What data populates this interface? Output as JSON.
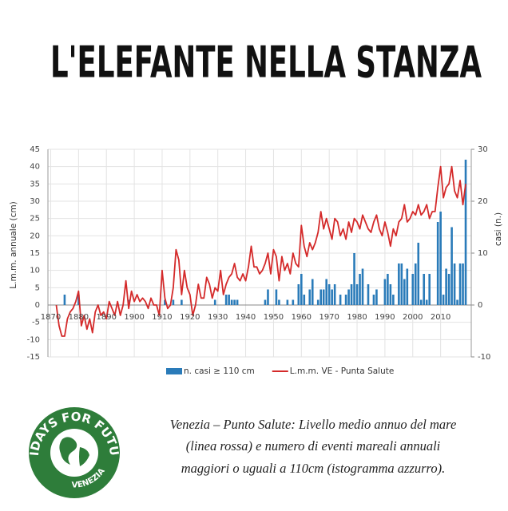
{
  "title": "L'ELEFANTE NELLA STANZA",
  "chart_data": {
    "type": "combo",
    "ylabel": "L.m.m. annuale (cm)",
    "y2label": "casi (n.)",
    "xlim": [
      1869,
      2021
    ],
    "xticks": [
      1870,
      1880,
      1890,
      1900,
      1910,
      1920,
      1930,
      1940,
      1950,
      1960,
      1970,
      1980,
      1990,
      2000,
      2010
    ],
    "ylim": [
      -15,
      45
    ],
    "yticks": [
      -15,
      -10,
      -5,
      0,
      5,
      10,
      15,
      20,
      25,
      30,
      35,
      40,
      45
    ],
    "y2lim": [
      -10,
      30
    ],
    "y2ticks": [
      -10,
      0,
      10,
      20,
      30
    ],
    "grid": true,
    "legend": "bottom",
    "series": [
      {
        "name": "n. casi ≥ 110 cm",
        "type": "bar",
        "axis": "y2",
        "color": "#2a7bb9",
        "x": [
          1875,
          1880,
          1898,
          1911,
          1914,
          1917,
          1929,
          1933,
          1934,
          1935,
          1936,
          1937,
          1947,
          1948,
          1951,
          1952,
          1955,
          1957,
          1959,
          1960,
          1961,
          1963,
          1964,
          1966,
          1967,
          1968,
          1969,
          1970,
          1971,
          1972,
          1974,
          1976,
          1977,
          1978,
          1979,
          1980,
          1981,
          1982,
          1984,
          1986,
          1987,
          1990,
          1991,
          1992,
          1993,
          1995,
          1996,
          1997,
          1998,
          2000,
          2001,
          2002,
          2003,
          2004,
          2005,
          2006,
          2009,
          2010,
          2011,
          2012,
          2013,
          2014,
          2015,
          2016,
          2017,
          2018,
          2019
        ],
        "values": [
          2,
          2,
          1,
          1,
          1,
          1,
          1,
          2,
          2,
          1,
          1,
          1,
          1,
          3,
          3,
          1,
          1,
          1,
          4,
          6,
          2,
          3,
          5,
          1,
          3,
          3,
          5,
          4,
          3,
          4,
          2,
          2,
          3,
          4,
          10,
          4,
          6,
          7,
          4,
          2,
          3,
          5,
          6,
          4,
          2,
          8,
          8,
          5,
          7,
          6,
          8,
          12,
          1,
          6,
          1,
          6,
          16,
          18,
          2,
          7,
          6,
          15,
          8,
          1,
          8,
          8,
          28
        ]
      },
      {
        "name": "L.m.m. VE - Punta Salute",
        "type": "line",
        "color": "#d42a2a",
        "x": [
          1872,
          1873,
          1874,
          1875,
          1876,
          1877,
          1878,
          1879,
          1880,
          1881,
          1882,
          1883,
          1884,
          1885,
          1886,
          1887,
          1888,
          1889,
          1890,
          1891,
          1892,
          1893,
          1894,
          1895,
          1896,
          1897,
          1898,
          1899,
          1900,
          1901,
          1902,
          1903,
          1904,
          1905,
          1906,
          1907,
          1908,
          1909,
          1910,
          1911,
          1912,
          1913,
          1914,
          1915,
          1916,
          1917,
          1918,
          1919,
          1920,
          1921,
          1922,
          1923,
          1924,
          1925,
          1926,
          1927,
          1928,
          1929,
          1930,
          1931,
          1932,
          1933,
          1934,
          1935,
          1936,
          1937,
          1938,
          1939,
          1940,
          1941,
          1942,
          1943,
          1944,
          1945,
          1946,
          1947,
          1948,
          1949,
          1950,
          1951,
          1952,
          1953,
          1954,
          1955,
          1956,
          1957,
          1958,
          1959,
          1960,
          1961,
          1962,
          1963,
          1964,
          1965,
          1966,
          1967,
          1968,
          1969,
          1970,
          1971,
          1972,
          1973,
          1974,
          1975,
          1976,
          1977,
          1978,
          1979,
          1980,
          1981,
          1982,
          1983,
          1984,
          1985,
          1986,
          1987,
          1988,
          1989,
          1990,
          1991,
          1992,
          1993,
          1994,
          1995,
          1996,
          1997,
          1998,
          1999,
          2000,
          2001,
          2002,
          2003,
          2004,
          2005,
          2006,
          2007,
          2008,
          2009,
          2010,
          2011,
          2012,
          2013,
          2014,
          2015,
          2016,
          2017,
          2018,
          2019
        ],
        "values": [
          0,
          -6,
          -9,
          -9,
          -4,
          -2,
          -1,
          1,
          4,
          -6,
          -3,
          -7,
          -4,
          -8,
          -2,
          0,
          -3,
          -2,
          -4,
          1,
          -1,
          -3,
          1,
          -3,
          0,
          7,
          -1,
          4,
          1,
          3,
          1,
          2,
          1,
          -1,
          2,
          0,
          0,
          -3,
          10,
          2,
          -1,
          0,
          5,
          16,
          13,
          3,
          10,
          5,
          3,
          -3,
          0,
          6,
          2,
          2,
          8,
          6,
          2,
          5,
          4,
          10,
          3,
          6,
          8,
          9,
          12,
          8,
          7,
          9,
          7,
          11,
          17,
          11,
          11,
          9,
          10,
          12,
          15,
          9,
          16,
          14,
          7,
          14,
          10,
          12,
          9,
          15,
          12,
          11,
          23,
          17,
          14,
          18,
          16,
          18,
          21,
          27,
          22,
          25,
          22,
          19,
          25,
          24,
          20,
          22,
          19,
          24,
          21,
          25,
          24,
          22,
          26,
          24,
          22,
          21,
          24,
          26,
          22,
          20,
          24,
          21,
          17,
          22,
          20,
          24,
          25,
          29,
          24,
          25,
          27,
          26,
          29,
          26,
          27,
          29,
          25,
          27,
          27,
          34,
          40,
          31,
          34,
          35,
          40,
          33,
          31,
          36,
          29,
          35
        ]
      }
    ]
  },
  "caption": [
    "Venezia – Punto Salute: Livello medio annuo del mare",
    "(linea rossa) e numero di eventi mareali annuali",
    "maggiori o uguali a 110cm (istogramma azzurro)."
  ],
  "logo": {
    "top": "FRIDAYS FOR FUTURE",
    "bottom": "VENEZIA"
  }
}
